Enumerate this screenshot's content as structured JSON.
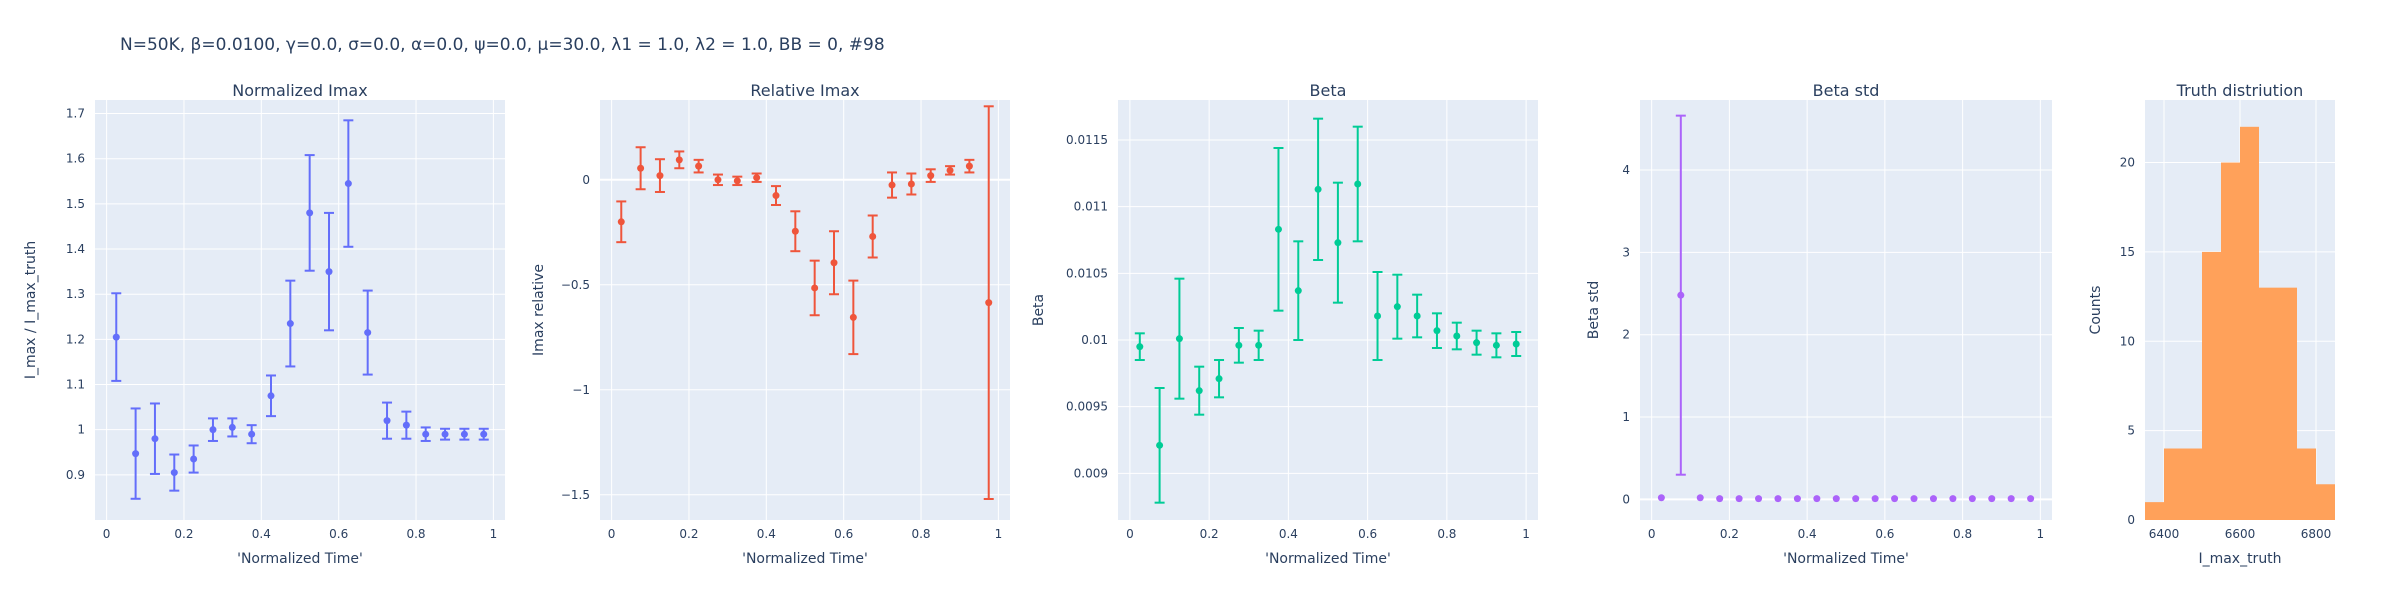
{
  "figure_title": "N=50K, β=0.0100, γ=0.0, σ=0.0,  α=0.0, ψ=0.0, μ=30.0, λ1 = 1.0, λ2 = 1.0, BB = 0, #98",
  "colors": {
    "panel_bg": "#e5ecf6",
    "text": "#2a3f5f",
    "series1": "#636efa",
    "series2": "#ef553b",
    "series3": "#00cc96",
    "series4": "#ab63fa",
    "series5": "#ffa15a"
  },
  "chart_data": [
    {
      "type": "scatter",
      "title": "Normalized Imax",
      "xlabel": "'Normalized Time'",
      "ylabel": "I_max / I_max_truth",
      "xlim": [
        -0.03,
        1.03
      ],
      "ylim": [
        0.8,
        1.73
      ],
      "xticks": [
        0,
        0.2,
        0.4,
        0.6,
        0.8,
        1
      ],
      "xtick_labels": [
        "0",
        "0.2",
        "0.4",
        "0.6",
        "0.8",
        "1"
      ],
      "yticks": [
        0.9,
        1,
        1.1,
        1.2,
        1.3,
        1.4,
        1.5,
        1.6,
        1.7
      ],
      "ytick_labels": [
        "0.9",
        "1",
        "1.1",
        "1.2",
        "1.3",
        "1.4",
        "1.5",
        "1.6",
        "1.7"
      ],
      "color": "#636efa",
      "x": [
        0.025,
        0.075,
        0.125,
        0.175,
        0.225,
        0.275,
        0.325,
        0.375,
        0.425,
        0.475,
        0.525,
        0.575,
        0.625,
        0.675,
        0.725,
        0.775,
        0.825,
        0.875,
        0.925,
        0.975
      ],
      "y": [
        1.205,
        0.947,
        0.98,
        0.905,
        0.935,
        1.0,
        1.005,
        0.99,
        1.075,
        1.235,
        1.48,
        1.35,
        1.545,
        1.215,
        1.02,
        1.01,
        0.99,
        0.99,
        0.99,
        0.99
      ],
      "err": [
        0.097,
        0.1,
        0.078,
        0.04,
        0.03,
        0.025,
        0.02,
        0.02,
        0.045,
        0.095,
        0.128,
        0.13,
        0.14,
        0.093,
        0.04,
        0.03,
        0.015,
        0.012,
        0.012,
        0.012
      ]
    },
    {
      "type": "scatter",
      "title": "Relative Imax",
      "xlabel": "'Normalized Time'",
      "ylabel": "Imax relative",
      "xlim": [
        -0.03,
        1.03
      ],
      "ylim": [
        -1.62,
        0.38
      ],
      "xticks": [
        0,
        0.2,
        0.4,
        0.6,
        0.8,
        1
      ],
      "xtick_labels": [
        "0",
        "0.2",
        "0.4",
        "0.6",
        "0.8",
        "1"
      ],
      "yticks": [
        -1.5,
        -1,
        -0.5,
        0
      ],
      "ytick_labels": [
        "−1.5",
        "−1",
        "−0.5",
        "0"
      ],
      "zeroline": true,
      "color": "#ef553b",
      "x": [
        0.025,
        0.075,
        0.125,
        0.175,
        0.225,
        0.275,
        0.325,
        0.375,
        0.425,
        0.475,
        0.525,
        0.575,
        0.625,
        0.675,
        0.725,
        0.775,
        0.825,
        0.875,
        0.925,
        0.975
      ],
      "y": [
        -0.2,
        0.055,
        0.02,
        0.095,
        0.065,
        0.0,
        -0.005,
        0.01,
        -0.075,
        -0.245,
        -0.515,
        -0.395,
        -0.655,
        -0.27,
        -0.025,
        -0.02,
        0.02,
        0.045,
        0.065,
        -0.585
      ],
      "err": [
        0.097,
        0.1,
        0.078,
        0.04,
        0.03,
        0.025,
        0.02,
        0.02,
        0.045,
        0.095,
        0.13,
        0.15,
        0.175,
        0.1,
        0.06,
        0.05,
        0.03,
        0.02,
        0.03,
        0.935
      ]
    },
    {
      "type": "scatter",
      "title": "Beta",
      "xlabel": "'Normalized Time'",
      "ylabel": "Beta",
      "xlim": [
        -0.03,
        1.03
      ],
      "ylim": [
        0.00865,
        0.0118
      ],
      "xticks": [
        0,
        0.2,
        0.4,
        0.6,
        0.8,
        1
      ],
      "xtick_labels": [
        "0",
        "0.2",
        "0.4",
        "0.6",
        "0.8",
        "1"
      ],
      "yticks": [
        0.009,
        0.0095,
        0.01,
        0.0105,
        0.011,
        0.0115
      ],
      "ytick_labels": [
        "0.009",
        "0.0095",
        "0.01",
        "0.0105",
        "0.011",
        "0.0115"
      ],
      "color": "#00cc96",
      "x": [
        0.025,
        0.075,
        0.125,
        0.175,
        0.225,
        0.275,
        0.325,
        0.375,
        0.425,
        0.475,
        0.525,
        0.575,
        0.625,
        0.675,
        0.725,
        0.775,
        0.825,
        0.875,
        0.925,
        0.975
      ],
      "y": [
        0.00995,
        0.00921,
        0.01001,
        0.00962,
        0.00971,
        0.00996,
        0.00996,
        0.01083,
        0.01037,
        0.01113,
        0.01073,
        0.01117,
        0.01018,
        0.01025,
        0.01018,
        0.01007,
        0.01003,
        0.00998,
        0.00996,
        0.00997
      ],
      "err": [
        0.0001,
        0.00043,
        0.00045,
        0.00018,
        0.00014,
        0.00013,
        0.00011,
        0.00061,
        0.00037,
        0.00053,
        0.00045,
        0.00043,
        0.00033,
        0.00024,
        0.00016,
        0.00013,
        0.0001,
        9e-05,
        9e-05,
        9e-05
      ]
    },
    {
      "type": "scatter",
      "title": "Beta std",
      "xlabel": "'Normalized Time'",
      "ylabel": "Beta std",
      "xlim": [
        -0.03,
        1.03
      ],
      "ylim": [
        -0.25,
        4.85
      ],
      "xticks": [
        0,
        0.2,
        0.4,
        0.6,
        0.8,
        1
      ],
      "xtick_labels": [
        "0",
        "0.2",
        "0.4",
        "0.6",
        "0.8",
        "1"
      ],
      "yticks": [
        0,
        1,
        2,
        3,
        4
      ],
      "ytick_labels": [
        "0",
        "1",
        "2",
        "3",
        "4"
      ],
      "zeroline": true,
      "color": "#ab63fa",
      "x": [
        0.025,
        0.075,
        0.125,
        0.175,
        0.225,
        0.275,
        0.325,
        0.375,
        0.425,
        0.475,
        0.525,
        0.575,
        0.625,
        0.675,
        0.725,
        0.775,
        0.825,
        0.875,
        0.925,
        0.975
      ],
      "y": [
        0.02,
        2.48,
        0.02,
        0.01,
        0.01,
        0.01,
        0.01,
        0.01,
        0.01,
        0.01,
        0.01,
        0.01,
        0.01,
        0.01,
        0.01,
        0.01,
        0.01,
        0.01,
        0.01,
        0.01
      ],
      "err": [
        0,
        2.18,
        0,
        0,
        0,
        0,
        0,
        0,
        0,
        0,
        0,
        0,
        0,
        0,
        0,
        0,
        0,
        0,
        0,
        0
      ]
    },
    {
      "type": "histogram",
      "title": "Truth distriution",
      "xlabel": "I_max_truth",
      "ylabel": "Counts",
      "xlim": [
        6350,
        6850
      ],
      "ylim": [
        0,
        23.5
      ],
      "xticks": [
        6400,
        6600,
        6800
      ],
      "xtick_labels": [
        "6400",
        "6600",
        "6800"
      ],
      "yticks": [
        0,
        5,
        10,
        15,
        20
      ],
      "ytick_labels": [
        "0",
        "5",
        "10",
        "15",
        "20"
      ],
      "color": "#ffa15a",
      "bin_edges": [
        6350,
        6400,
        6450,
        6500,
        6550,
        6600,
        6650,
        6700,
        6750,
        6800,
        6850
      ],
      "values": [
        1,
        4,
        4,
        15,
        20,
        22,
        13,
        13,
        4,
        2
      ]
    }
  ]
}
